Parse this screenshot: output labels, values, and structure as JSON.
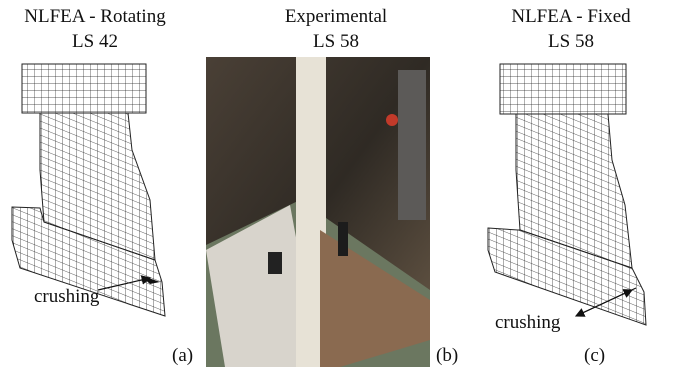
{
  "panels": [
    {
      "title": "NLFEA - Rotating",
      "subtitle": "LS 42",
      "annotation": "crushing",
      "label": "(a)"
    },
    {
      "title": "Experimental",
      "subtitle": "LS 58",
      "label": "(b)"
    },
    {
      "title": "NLFEA - Fixed",
      "subtitle": "LS 58",
      "annotation": "crushing",
      "label": "(c)"
    }
  ]
}
